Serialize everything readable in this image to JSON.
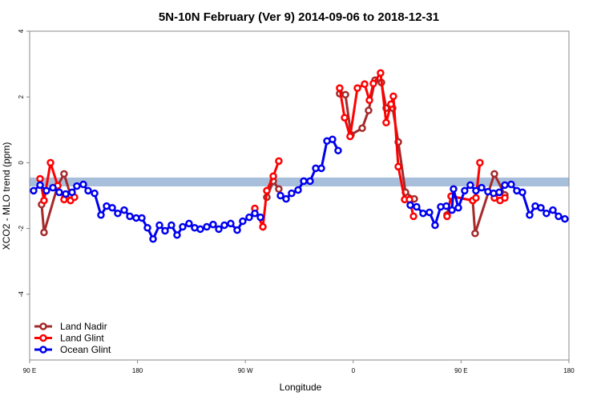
{
  "chart_data": {
    "type": "line",
    "title": "5N-10N February (Ver 9)   2014-09-06 to 2018-12-31",
    "xlabel": "Longitude",
    "ylabel": "XCO2 - MLO trend (ppm)",
    "xlim": [
      90,
      540
    ],
    "ylim": [
      -6,
      4
    ],
    "xticks": [
      {
        "value": 90,
        "label": "90 E"
      },
      {
        "value": 180,
        "label": "180"
      },
      {
        "value": 270,
        "label": "90 W"
      },
      {
        "value": 360,
        "label": "0"
      },
      {
        "value": 450,
        "label": "90 E"
      },
      {
        "value": 540,
        "label": "180"
      }
    ],
    "yticks": [
      -4,
      -2,
      0,
      2,
      4
    ],
    "grid": false,
    "legend": "bottom-left",
    "reference_band": {
      "ylim": [
        -0.72,
        -0.45
      ],
      "color": "#a8bfdc"
    },
    "series": [
      {
        "name": "Land Nadir",
        "color": "#a52a2a",
        "x": [
          100,
          102,
          113.4,
          118.7,
          124.1,
          null,
          287.9,
          293.3,
          297.9,
          null,
          348.7,
          353.5,
          358.1,
          367.5,
          372.8,
          378.2,
          383.5,
          387.5,
          392.9,
          397.6,
          403.6,
          410.9,
          null,
          438.3,
          441.7,
          459.7,
          461.7,
          477.8,
          486.5
        ],
        "values": [
          -1.27,
          -2.12,
          -0.7,
          -0.34,
          -0.98,
          null,
          -1.05,
          -0.56,
          -0.8,
          null,
          2.1,
          2.07,
          0.85,
          1.05,
          1.59,
          2.51,
          2.44,
          1.66,
          1.66,
          0.63,
          -0.9,
          -1.1,
          null,
          -1.59,
          -1.02,
          -1.15,
          -2.15,
          -0.34,
          -0.98
        ]
      },
      {
        "name": "Land Glint",
        "color": "#ff0000",
        "x": [
          98.7,
          102,
          107.4,
          113.4,
          118.7,
          124.1,
          127.4,
          null,
          277.9,
          284.6,
          287.9,
          293.3,
          297.9,
          null,
          348.7,
          352.8,
          357.4,
          363.5,
          369.5,
          373.5,
          376.8,
          382.8,
          387.5,
          391.5,
          393.5,
          397.6,
          402.9,
          406.9,
          410.3,
          null,
          438.3,
          441.7,
          459.7,
          462.4,
          465.7,
          null,
          477.8,
          482.5,
          486.5
        ],
        "values": [
          -0.49,
          -1.15,
          0,
          -0.7,
          -1.12,
          -1.15,
          -1.05,
          null,
          -1.39,
          -1.95,
          -0.85,
          -0.41,
          0.05,
          null,
          2.27,
          1.37,
          0.8,
          2.27,
          2.39,
          1.9,
          2.41,
          2.73,
          1.22,
          1.78,
          2.02,
          -0.12,
          -1.12,
          -1.12,
          -1.63,
          null,
          -1.63,
          -1.02,
          -1.15,
          -1.07,
          0,
          null,
          -1.07,
          -1.15,
          -1.07
        ]
      },
      {
        "name": "Ocean Glint",
        "color": "#0000ee",
        "x": [
          93.3,
          98.7,
          104,
          109.4,
          114.7,
          120.1,
          125.4,
          129.4,
          134.8,
          138.8,
          144.2,
          149.5,
          154.2,
          158.9,
          163.5,
          168.9,
          173.6,
          178.9,
          183.6,
          188.3,
          193,
          198.3,
          203,
          208.3,
          213,
          217.7,
          223,
          227.7,
          232.4,
          237.8,
          243.1,
          247.8,
          252.5,
          257.8,
          263.2,
          267.8,
          273.2,
          277.9,
          282.6,
          null,
          299.3,
          304,
          308.6,
          314,
          318.7,
          324,
          328.7,
          333.4,
          338.1,
          342.7,
          347.4,
          null,
          407.6,
          412.9,
          418.3,
          423.6,
          428.3,
          433,
          437.7,
          442.4,
          443.7,
          447.7,
          453,
          457.7,
          462.4,
          467.1,
          472.4,
          477.1,
          481.8,
          486.5,
          491.8,
          496.5,
          501.2,
          507.2,
          511.9,
          516.6,
          521.2,
          526.6,
          531.3,
          536.6
        ],
        "values": [
          -0.85,
          -0.68,
          -0.85,
          -0.76,
          -0.9,
          -0.95,
          -0.9,
          -0.71,
          -0.66,
          -0.85,
          -0.93,
          -1.59,
          -1.32,
          -1.37,
          -1.54,
          -1.44,
          -1.63,
          -1.68,
          -1.68,
          -1.98,
          -2.32,
          -1.9,
          -2.07,
          -1.9,
          -2.2,
          -1.95,
          -1.85,
          -1.98,
          -2.02,
          -1.95,
          -1.88,
          -2.02,
          -1.9,
          -1.85,
          -2.05,
          -1.78,
          -1.66,
          -1.54,
          -1.66,
          null,
          -1.0,
          -1.1,
          -0.93,
          -0.83,
          -0.56,
          -0.56,
          -0.17,
          -0.17,
          0.66,
          0.71,
          0.37,
          null,
          -1.29,
          -1.34,
          -1.54,
          -1.51,
          -1.9,
          -1.34,
          -1.32,
          -1.44,
          -0.8,
          -1.37,
          -0.85,
          -0.68,
          -0.85,
          -0.76,
          -0.88,
          -0.93,
          -0.9,
          -0.68,
          -0.66,
          -0.85,
          -0.9,
          -1.59,
          -1.32,
          -1.37,
          -1.54,
          -1.44,
          -1.63,
          -1.71
        ]
      }
    ]
  }
}
